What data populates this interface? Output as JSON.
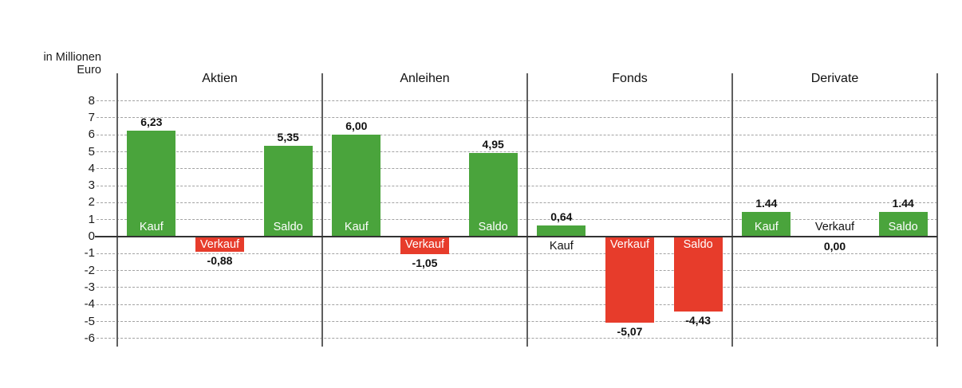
{
  "axis": {
    "unit_label_line1": "in Millionen",
    "unit_label_line2": "Euro"
  },
  "colors": {
    "positive_bar": "#4AA43C",
    "negative_bar": "#E73C2B",
    "zero_axis_line": "#333333",
    "grid_line": "#A3A3A3",
    "divider_line": "#5F5F5F",
    "inside_bar_text": "#FFFFFF",
    "value_text": "#111111"
  },
  "chart_data": {
    "type": "bar",
    "title": "",
    "ylabel": "in Millionen Euro",
    "ylim": [
      -6,
      8
    ],
    "ytick_step": 1,
    "grid": "horizontal-dashed",
    "legend_position": "none",
    "categories": [
      "Aktien",
      "Anleihen",
      "Fonds",
      "Derivate"
    ],
    "series_labels": [
      "Kauf",
      "Verkauf",
      "Saldo"
    ],
    "groups": [
      {
        "category": "Aktien",
        "bars": [
          {
            "label": "Kauf",
            "value": 6.23,
            "display": "6,23"
          },
          {
            "label": "Verkauf",
            "value": -0.88,
            "display": "-0,88"
          },
          {
            "label": "Saldo",
            "value": 5.35,
            "display": "5,35"
          }
        ]
      },
      {
        "category": "Anleihen",
        "bars": [
          {
            "label": "Kauf",
            "value": 6.0,
            "display": "6,00"
          },
          {
            "label": "Verkauf",
            "value": -1.05,
            "display": "-1,05"
          },
          {
            "label": "Saldo",
            "value": 4.95,
            "display": "4,95"
          }
        ]
      },
      {
        "category": "Fonds",
        "bars": [
          {
            "label": "Kauf",
            "value": 0.64,
            "display": "0,64"
          },
          {
            "label": "Verkauf",
            "value": -5.07,
            "display": "-5,07"
          },
          {
            "label": "Saldo",
            "value": -4.43,
            "display": "-4,43"
          }
        ]
      },
      {
        "category": "Derivate",
        "bars": [
          {
            "label": "Kauf",
            "value": 1.44,
            "display": "1.44"
          },
          {
            "label": "Verkauf",
            "value": 0.0,
            "display": "0,00"
          },
          {
            "label": "Saldo",
            "value": 1.44,
            "display": "1.44"
          }
        ]
      }
    ]
  }
}
